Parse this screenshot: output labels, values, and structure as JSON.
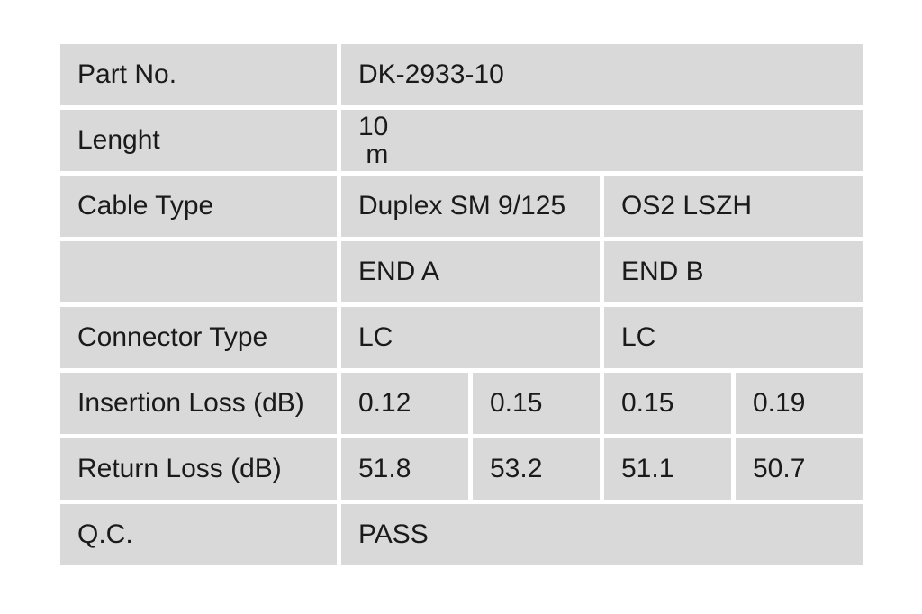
{
  "colors": {
    "page_background": "#ffffff",
    "cell_background": "#d9d9d9",
    "text": "#1a1a1a"
  },
  "table": {
    "rows": [
      {
        "label": "Part No.",
        "cells": [
          {
            "text": "DK-2933-10"
          }
        ]
      },
      {
        "label": "Lenght",
        "cells": [
          {
            "text": "10\n m"
          }
        ]
      },
      {
        "label": "Cable Type",
        "cells": [
          {
            "text": "Duplex SM 9/125"
          },
          {
            "text": "OS2 LSZH"
          }
        ]
      },
      {
        "label": "",
        "cells": [
          {
            "text": "END A"
          },
          {
            "text": "END B"
          }
        ]
      },
      {
        "label": "Connector Type",
        "cells": [
          {
            "text": "LC"
          },
          {
            "text": "LC"
          }
        ]
      },
      {
        "label": "Insertion Loss (dB)",
        "cells": [
          {
            "text": "0.12"
          },
          {
            "text": "0.15"
          },
          {
            "text": "0.15"
          },
          {
            "text": "0.19"
          }
        ]
      },
      {
        "label": "Return Loss (dB)",
        "cells": [
          {
            "text": "51.8"
          },
          {
            "text": "53.2"
          },
          {
            "text": "51.1"
          },
          {
            "text": "50.7"
          }
        ]
      },
      {
        "label": "Q.C.",
        "cells": [
          {
            "text": "PASS"
          }
        ]
      }
    ]
  }
}
